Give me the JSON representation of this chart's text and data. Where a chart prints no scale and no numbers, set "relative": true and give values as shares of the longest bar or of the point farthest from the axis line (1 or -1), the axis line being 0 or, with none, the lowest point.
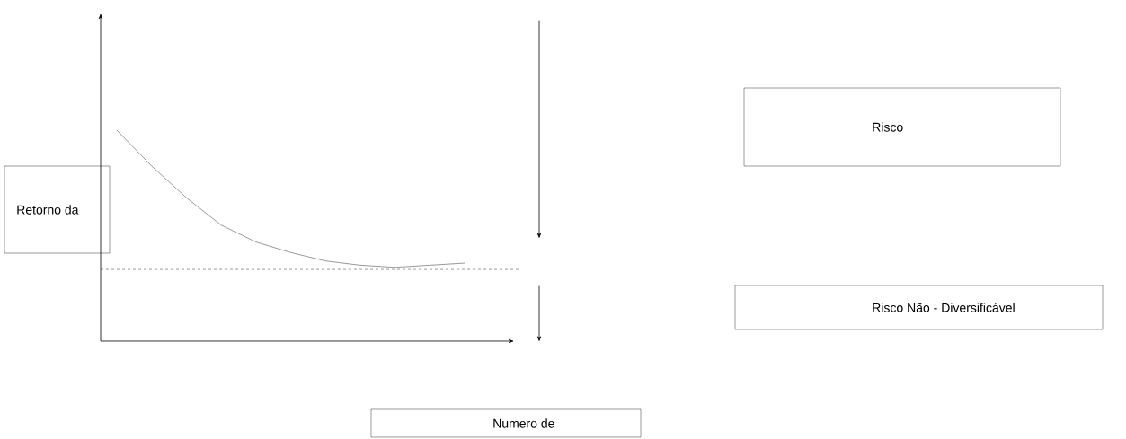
{
  "chart_data": {
    "type": "line",
    "relative": true,
    "categories": [
      null,
      null,
      null,
      null,
      null,
      null,
      null,
      null,
      null,
      null,
      null
    ],
    "series": [
      {
        "color": "#7f7f7f",
        "values": [
          1,
          0.83,
          0.68,
          0.55,
          0.47,
          0.42,
          0.38,
          0.36,
          0.35,
          0.36,
          0.37
        ]
      }
    ],
    "ref_lines": [
      {
        "axis": "y",
        "value": 0.34,
        "color": "#000000",
        "line_style": "dashed"
      }
    ],
    "annotations": [
      "Risco",
      "Retorno da",
      "Risco Não - Diversificável",
      "Numero de"
    ]
  }
}
